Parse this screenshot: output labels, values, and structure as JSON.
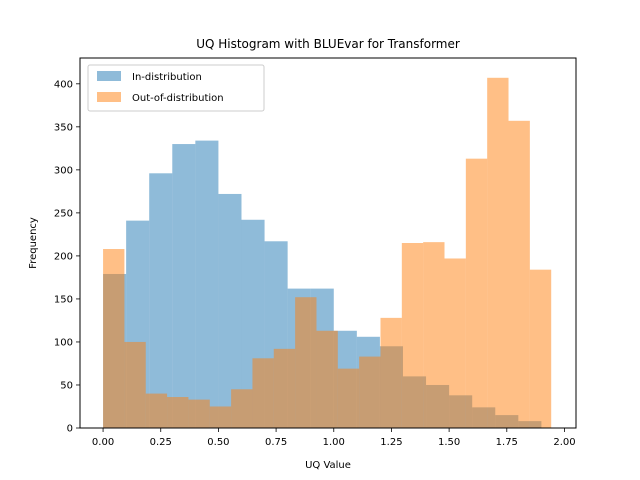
{
  "chart_data": {
    "type": "bar",
    "title": "UQ Histogram with BLUEvar for Transformer",
    "xlabel": "UQ Value",
    "ylabel": "Frequency",
    "xlim": [
      -0.1,
      2.05
    ],
    "ylim": [
      0,
      430
    ],
    "xticks": [
      "0.00",
      "0.25",
      "0.50",
      "0.75",
      "1.00",
      "1.25",
      "1.50",
      "1.75",
      "2.00"
    ],
    "xtick_values": [
      0,
      0.25,
      0.5,
      0.75,
      1.0,
      1.25,
      1.5,
      1.75,
      2.0
    ],
    "yticks": [
      "0",
      "50",
      "100",
      "150",
      "200",
      "250",
      "300",
      "350",
      "400"
    ],
    "ytick_values": [
      0,
      50,
      100,
      150,
      200,
      250,
      300,
      350,
      400
    ],
    "grid": false,
    "legend_position": "upper-left",
    "overlay_alpha": 0.5,
    "series": [
      {
        "name": "In-distribution",
        "color": "#1f77b4",
        "bin_width": 0.1,
        "bin_starts": [
          0.0,
          0.1,
          0.2,
          0.3,
          0.4,
          0.5,
          0.6,
          0.7,
          0.8,
          0.9,
          1.0,
          1.1,
          1.2,
          1.3,
          1.4,
          1.5,
          1.6,
          1.7,
          1.8
        ],
        "values": [
          179,
          241,
          296,
          330,
          334,
          272,
          242,
          217,
          162,
          162,
          113,
          106,
          95,
          60,
          50,
          38,
          24,
          15,
          8
        ]
      },
      {
        "name": "Out-of-distribution",
        "color": "#ff7f0e",
        "bin_width": 0.0925,
        "bin_starts": [
          0.0,
          0.0925,
          0.185,
          0.2775,
          0.37,
          0.4625,
          0.555,
          0.6475,
          0.74,
          0.8325,
          0.925,
          1.0175,
          1.11,
          1.2025,
          1.295,
          1.3875,
          1.48,
          1.5725,
          1.665,
          1.7575,
          1.85
        ],
        "values": [
          208,
          100,
          40,
          36,
          33,
          25,
          45,
          81,
          92,
          152,
          113,
          69,
          83,
          128,
          215,
          216,
          197,
          313,
          407,
          357,
          184
        ]
      }
    ]
  }
}
